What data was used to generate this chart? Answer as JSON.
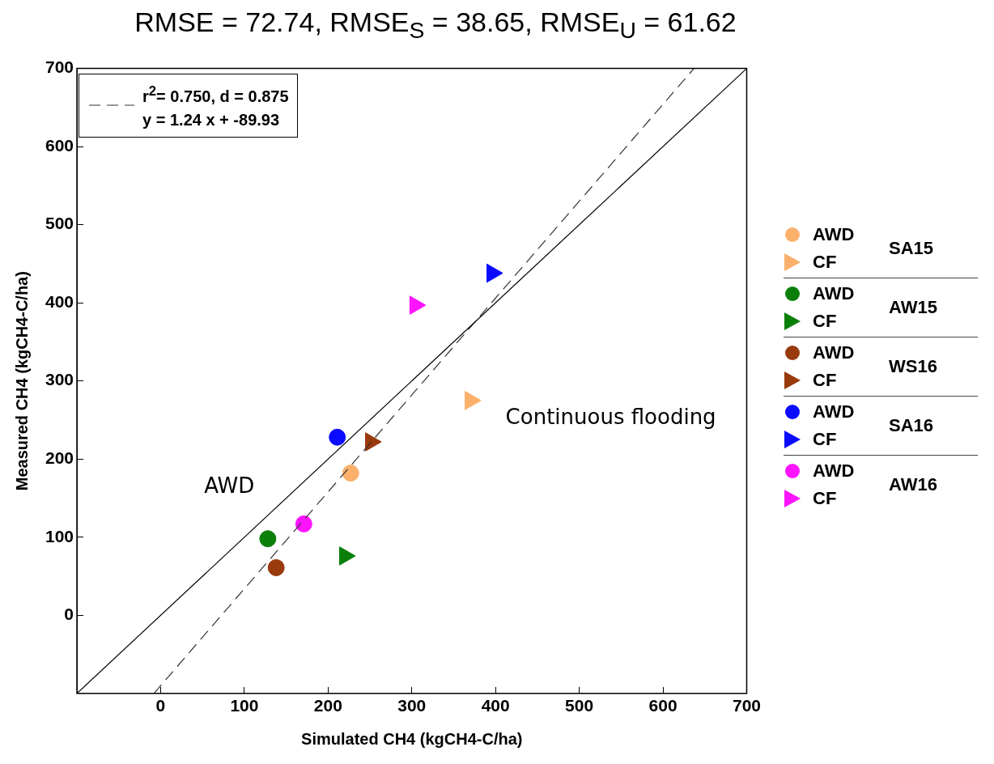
{
  "chart_data": {
    "type": "scatter",
    "title": "RMSE = 72.74, RMSE$_{S}$ = 38.65, RMSE$_{U}$ = 61.62",
    "xlabel": "Simulated CH4 (kgCH4-C/ha)",
    "ylabel": "Measured CH4 (kgCH4-C/ha)",
    "xlim": [
      -100,
      700
    ],
    "xticks": [
      0,
      100,
      200,
      300,
      400,
      500,
      600,
      700
    ],
    "ylim": [
      -100,
      700
    ],
    "yticks": [
      0,
      100,
      200,
      300,
      400,
      500,
      600,
      700
    ],
    "grid": false,
    "legend": "right",
    "annotations": [
      "Continuous flooding",
      "AWD",
      "SA15",
      "AW15",
      "WS16",
      "SA16",
      "AW16"
    ],
    "series": [
      {
        "type": "line",
        "x": [
          -100,
          700
        ],
        "values": [
          -100,
          700
        ],
        "color": "#000000",
        "line_style": "solid",
        "marker": "none"
      },
      {
        "type": "line",
        "name": "r$^{2}$= 0.750, d = 0.875\ny = 1.24 x + -89.93",
        "x": [
          -8,
          637
        ],
        "values": [
          -100,
          700
        ],
        "color": "#333333",
        "line_style": "dashed",
        "marker": "none"
      },
      {
        "name": "AWD",
        "color": "#fbb06c",
        "marker": "circle",
        "x": [
          227
        ],
        "values": [
          182
        ]
      },
      {
        "name": "CF",
        "color": "#fbb06c",
        "marker": "triangle",
        "x": [
          370
        ],
        "values": [
          275
        ]
      },
      {
        "name": "AWD",
        "color": "#0a800a",
        "marker": "circle",
        "x": [
          128
        ],
        "values": [
          98
        ]
      },
      {
        "name": "CF",
        "color": "#0a800a",
        "marker": "triangle",
        "x": [
          220
        ],
        "values": [
          76
        ]
      },
      {
        "name": "AWD",
        "color": "#983a0c",
        "marker": "circle",
        "x": [
          138
        ],
        "values": [
          61
        ]
      },
      {
        "name": "CF",
        "color": "#983a0c",
        "marker": "triangle",
        "x": [
          251
        ],
        "values": [
          222
        ]
      },
      {
        "name": "AWD",
        "color": "#0a0aff",
        "marker": "circle",
        "x": [
          211
        ],
        "values": [
          228
        ]
      },
      {
        "name": "CF",
        "color": "#0a0aff",
        "marker": "triangle",
        "x": [
          396
        ],
        "values": [
          438
        ]
      },
      {
        "name": "AWD",
        "color": "#ff14ff",
        "marker": "circle",
        "x": [
          171
        ],
        "values": [
          117
        ]
      },
      {
        "name": "CF",
        "color": "#ff14ff",
        "marker": "triangle",
        "x": [
          304
        ],
        "values": [
          397
        ]
      }
    ]
  }
}
